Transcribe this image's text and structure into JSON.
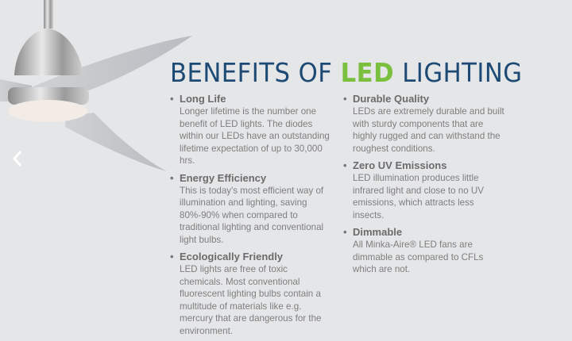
{
  "title": {
    "prefix": "BENEFITS OF ",
    "highlight": "LED",
    "suffix": " LIGHTING"
  },
  "colors": {
    "title": "#1c4a74",
    "highlight": "#7bbf3f",
    "background": "#e5e6e8"
  },
  "carousel": {
    "prev_icon": "chevron-left-icon"
  },
  "left": [
    {
      "heading": "Long Life",
      "text": "Longer lifetime is the number one benefit of LED lights. The diodes within our LEDs have an outstanding lifetime expectation of up to 30,000 hrs."
    },
    {
      "heading": "Energy Efficiency",
      "text": "This is today's most efficient way of illumination and lighting, saving 80%-90% when compared to traditional lighting and conventional light bulbs."
    },
    {
      "heading": "Ecologically Friendly",
      "text": "LED lights are free of toxic chemicals. Most conventional fluorescent lighting bulbs contain a multitude of materials like e.g. mercury that are dangerous for the environment."
    }
  ],
  "right": [
    {
      "heading": "Durable Quality",
      "text": "LEDs are extremely durable and built with sturdy components that are highly rugged and can withstand the roughest conditions."
    },
    {
      "heading": "Zero UV Emissions",
      "text": "LED illumination produces little infrared light and close to no UV emissions, which attracts less insects."
    },
    {
      "heading": "Dimmable",
      "text": "All Minka-Aire® LED fans are dimmable as compared to CFLs which are not."
    }
  ]
}
